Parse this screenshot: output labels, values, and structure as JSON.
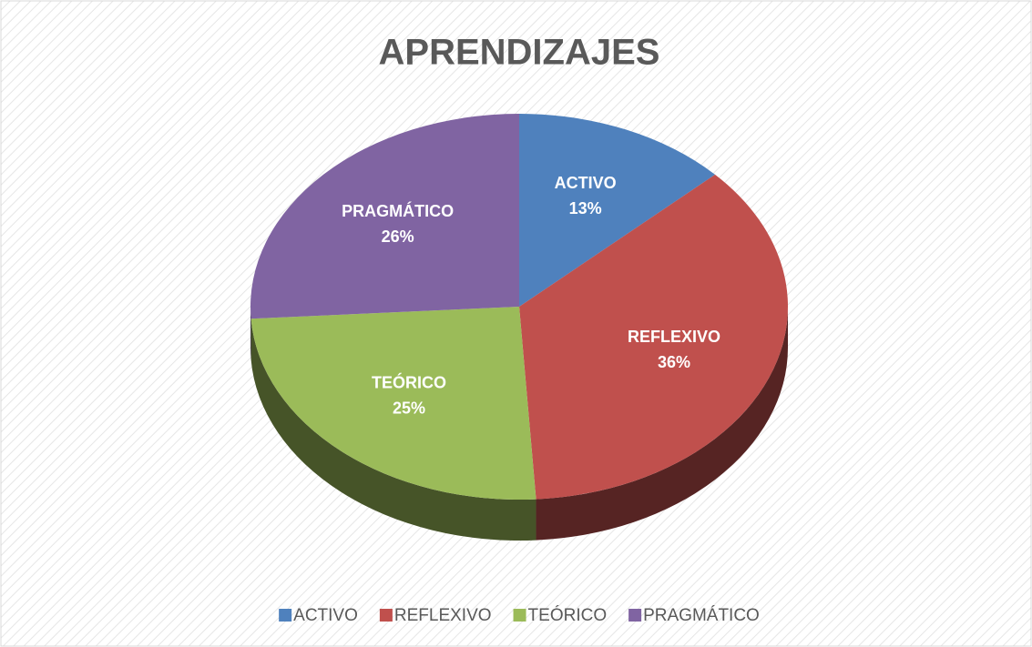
{
  "chart_data": {
    "type": "pie",
    "title": "APRENDIZAJES",
    "categories": [
      "ACTIVO",
      "REFLEXIVO",
      "TEÓRICO",
      "PRAGMÁTICO"
    ],
    "values": [
      13,
      36,
      25,
      26
    ],
    "value_labels": [
      "13%",
      "36%",
      "25%",
      "26%"
    ],
    "colors": [
      "#4f81bd",
      "#c0504d",
      "#9bbb59",
      "#8064a2"
    ],
    "legend": "bottom"
  }
}
